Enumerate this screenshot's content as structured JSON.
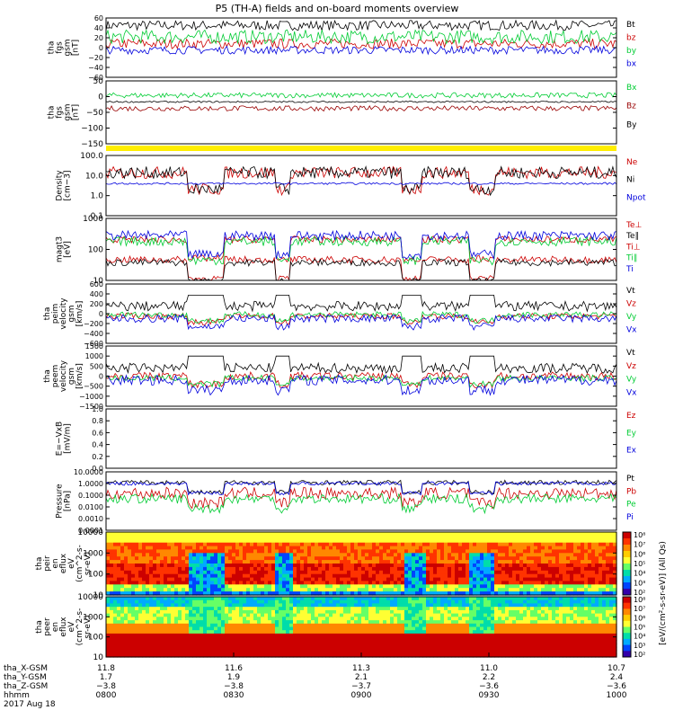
{
  "title": "P5 (TH-A) fields and on-board moments overview",
  "date_label": "2017 Aug 18",
  "chart_data": [
    {
      "type": "line",
      "id": "fgs_gsm",
      "ylabel": [
        "tha",
        "fgs",
        "gsm",
        "[nT]"
      ],
      "yticks": [
        "60",
        "40",
        "20",
        "0",
        "−20",
        "−40",
        "−60"
      ],
      "ylim": [
        -60,
        60
      ],
      "series": [
        {
          "name": "Bt",
          "color": "#000000",
          "base": 45,
          "amp": 10
        },
        {
          "name": "bz",
          "color": "#cc0000",
          "base": 8,
          "amp": 10
        },
        {
          "name": "by",
          "color": "#00cc33",
          "base": 22,
          "amp": 14
        },
        {
          "name": "bx",
          "color": "#0000dd",
          "base": -5,
          "amp": 8
        }
      ]
    },
    {
      "type": "line",
      "id": "fgs_gsm_other",
      "ylabel": [
        "tha",
        "fgs",
        "gsm",
        "[nT]"
      ],
      "yticks": [
        "50",
        "0",
        "−50",
        "−100",
        "−150"
      ],
      "ylim": [
        -180,
        60
      ],
      "series": [
        {
          "name": "Bx",
          "color": "#00cc33",
          "base": 5,
          "amp": 10
        },
        {
          "name": "Bz",
          "color": "#990000",
          "base": -45,
          "amp": 10
        },
        {
          "name": "By",
          "color": "#000000",
          "base": -20,
          "amp": 3
        }
      ]
    },
    {
      "type": "line",
      "id": "density",
      "ylabel": [
        "Density",
        "[cm−3]"
      ],
      "yticks": [
        "100.0",
        "10.0",
        "1.0",
        "0.1"
      ],
      "ylim": [
        0.1,
        100
      ],
      "scale": "log",
      "series": [
        {
          "name": "Ne",
          "color": "#cc0000",
          "base": 14,
          "amp": 0.3
        },
        {
          "name": "Ni",
          "color": "#000000",
          "base": 14,
          "amp": 0.3
        },
        {
          "name": "Npot",
          "color": "#0000dd",
          "base": 4,
          "amp": 0.05
        }
      ]
    },
    {
      "type": "line",
      "id": "temperature",
      "ylabel": [
        "magt3",
        "[eV]"
      ],
      "yticks": [
        "1000",
        "100",
        "10"
      ],
      "ylim": [
        10,
        5000
      ],
      "scale": "log",
      "series": [
        {
          "name": "Te⊥",
          "color": "#cc0000",
          "base": 80,
          "amp": 0.15
        },
        {
          "name": "Te∥",
          "color": "#000000",
          "base": 60,
          "amp": 0.15
        },
        {
          "name": "Ti⊥",
          "color": "#cc0000",
          "base": 600,
          "amp": 0.15
        },
        {
          "name": "Ti∥",
          "color": "#00cc33",
          "base": 500,
          "amp": 0.2
        },
        {
          "name": "Ti",
          "color": "#0000dd",
          "base": 900,
          "amp": 0.2
        }
      ]
    },
    {
      "type": "line",
      "id": "peim_velocity",
      "ylabel": [
        "tha",
        "peim",
        "velocity",
        "gsm",
        "[km/s]"
      ],
      "yticks": [
        "600",
        "400",
        "200",
        "0",
        "−200",
        "−400",
        "−600"
      ],
      "ylim": [
        -600,
        600
      ],
      "series": [
        {
          "name": "Vt",
          "color": "#000000",
          "base": 150,
          "amp": 100
        },
        {
          "name": "Vz",
          "color": "#cc0000",
          "base": -50,
          "amp": 60
        },
        {
          "name": "Vy",
          "color": "#00cc33",
          "base": -20,
          "amp": 60
        },
        {
          "name": "Vx",
          "color": "#0000dd",
          "base": -100,
          "amp": 80
        }
      ]
    },
    {
      "type": "line",
      "id": "peem_velocity",
      "ylabel": [
        "tha",
        "peem",
        "velocity",
        "gsm",
        "[km/s]"
      ],
      "yticks": [
        "1500",
        "1000",
        "500",
        "0",
        "−500",
        "−1000",
        "−1500"
      ],
      "ylim": [
        -1500,
        1500
      ],
      "series": [
        {
          "name": "Vt",
          "color": "#000000",
          "base": 400,
          "amp": 250
        },
        {
          "name": "Vz",
          "color": "#cc0000",
          "base": 0,
          "amp": 200
        },
        {
          "name": "Vy",
          "color": "#00cc33",
          "base": -100,
          "amp": 150
        },
        {
          "name": "Vx",
          "color": "#0000dd",
          "base": -200,
          "amp": 250
        }
      ]
    },
    {
      "type": "line",
      "id": "efield",
      "ylabel": [
        "E=−VxB",
        "[mV/m]"
      ],
      "yticks": [
        "1.0",
        "0.8",
        "0.6",
        "0.4",
        "0.2",
        "0.0"
      ],
      "ylim": [
        0,
        1
      ],
      "series": [
        {
          "name": "Ez",
          "color": "#cc0000"
        },
        {
          "name": "Ey",
          "color": "#00cc33"
        },
        {
          "name": "Ex",
          "color": "#0000dd"
        }
      ]
    },
    {
      "type": "line",
      "id": "pressure",
      "ylabel": [
        "Pressure",
        "[nPa]"
      ],
      "yticks": [
        "10.0000",
        "1.0000",
        "0.1000",
        "0.0100",
        "0.0010",
        "0.0001"
      ],
      "ylim": [
        0.0001,
        10
      ],
      "scale": "log",
      "series": [
        {
          "name": "Pt",
          "color": "#000000",
          "base": 1.2,
          "amp": 0.2
        },
        {
          "name": "Pb",
          "color": "#cc0000",
          "base": 0.15,
          "amp": 0.5
        },
        {
          "name": "Pe",
          "color": "#00cc33",
          "base": 0.05,
          "amp": 0.4
        },
        {
          "name": "Pi",
          "color": "#0000dd",
          "base": 1.0,
          "amp": 0.15
        }
      ]
    },
    {
      "type": "heatmap",
      "id": "peir_en_eflux",
      "ylabel": [
        "tha",
        "peir",
        "en",
        "eflux",
        "eV",
        "(cm^2-s-",
        "sr-eV)"
      ],
      "yticks": [
        "10000",
        "1000",
        "100",
        "10"
      ],
      "ylim": [
        5,
        30000
      ],
      "scale": "log"
    },
    {
      "type": "heatmap",
      "id": "peer_en_eflux",
      "ylabel": [
        "tha",
        "peer",
        "en",
        "eflux",
        "eV",
        "(cm^2-s-",
        "sr-eV)"
      ],
      "yticks": [
        "10000",
        "1000",
        "100",
        "10"
      ],
      "ylim": [
        5,
        30000
      ],
      "scale": "log"
    }
  ],
  "colorbar": {
    "ticks_top": [
      "10⁸",
      "10⁷",
      "10⁶",
      "10⁵",
      "10⁴",
      "10³",
      "10²"
    ],
    "ticks_bottom": [
      "10⁸",
      "10⁷",
      "10⁶",
      "10⁵",
      "10⁴",
      "10³",
      "10²"
    ],
    "label": "[eV/(cm²-s-sr-eV)] (All Qs)"
  },
  "xaxis": {
    "rows": [
      {
        "label": "tha_X-GSM",
        "values": [
          "11.8",
          "11.6",
          "11.3",
          "11.0",
          "10.7"
        ]
      },
      {
        "label": "tha_Y-GSM",
        "values": [
          "1.7",
          "1.9",
          "2.1",
          "2.2",
          "2.4"
        ]
      },
      {
        "label": "tha_Z-GSM",
        "values": [
          "−3.8",
          "−3.8",
          "−3.7",
          "−3.6",
          "−3.6"
        ]
      },
      {
        "label": "hhmm",
        "values": [
          "0800",
          "0830",
          "0900",
          "0930",
          "1000"
        ]
      }
    ]
  }
}
